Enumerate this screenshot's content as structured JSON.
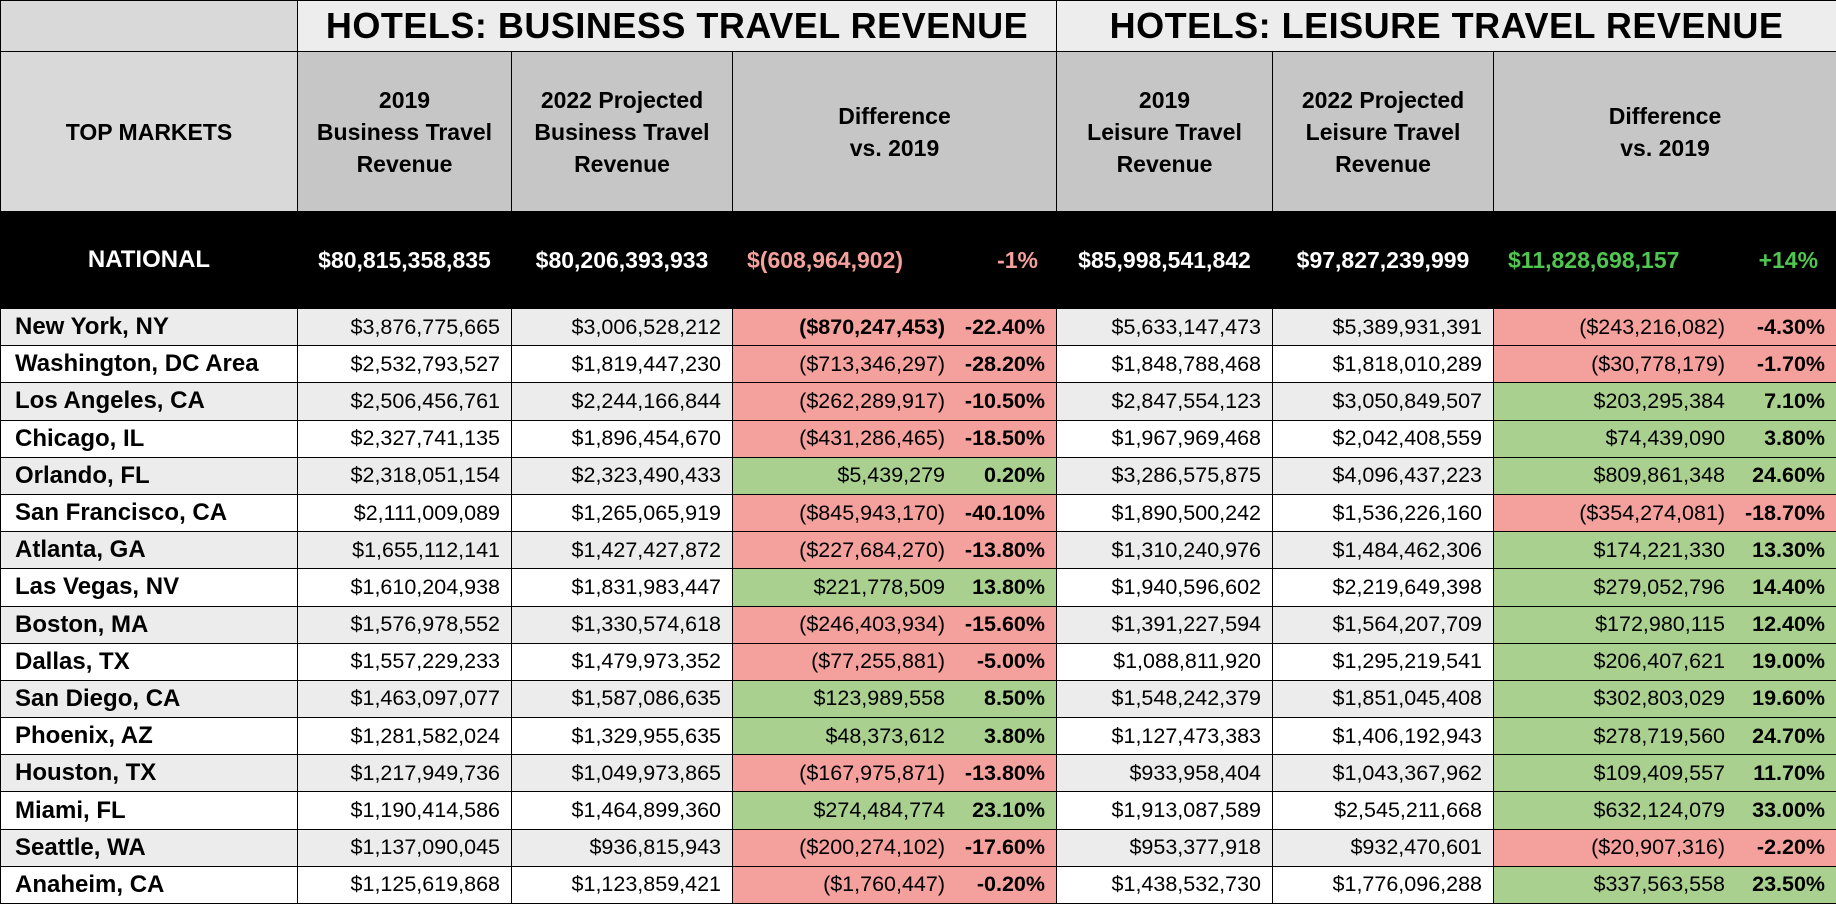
{
  "banner": {
    "business_title": "HOTELS: BUSINESS TRAVEL REVENUE",
    "leisure_title": "HOTELS: LEISURE TRAVEL REVENUE"
  },
  "headers": {
    "market": "TOP MARKETS",
    "biz_2019": [
      "2019",
      "Business Travel",
      "Revenue"
    ],
    "biz_2022": [
      "2022 Projected",
      "Business Travel",
      "Revenue"
    ],
    "biz_diff": [
      "Difference",
      "vs. 2019"
    ],
    "lei_2019": [
      "2019",
      "Leisure Travel",
      "Revenue"
    ],
    "lei_2022": [
      "2022 Projected",
      "Leisure Travel",
      "Revenue"
    ],
    "lei_diff": [
      "Difference",
      "vs. 2019"
    ]
  },
  "national": {
    "market": "NATIONAL",
    "biz_2019": "$80,815,358,835",
    "biz_2022": "$80,206,393,933",
    "biz_diff": "$(608,964,902)",
    "biz_pct": "-1%",
    "lei_2019": "$85,998,541,842",
    "lei_2022": "$97,827,239,999",
    "lei_diff": "$11,828,698,157",
    "lei_pct": "+14%"
  },
  "colors": {
    "negative": "#f4a09c",
    "positive": "#a9d08e",
    "national_positive_text": "#4fc64f"
  },
  "rows": [
    {
      "market": "New York, NY",
      "biz_2019": "$3,876,775,665",
      "biz_2022": "$3,006,528,212",
      "biz_diff": "($870,247,453)",
      "biz_pct": "-22.40%",
      "lei_2019": "$5,633,147,473",
      "lei_2022": "$5,389,931,391",
      "lei_diff": "($243,216,082)",
      "lei_pct": "-4.30%"
    },
    {
      "market": "Washington, DC Area",
      "biz_2019": "$2,532,793,527",
      "biz_2022": "$1,819,447,230",
      "biz_diff": "($713,346,297)",
      "biz_pct": "-28.20%",
      "lei_2019": "$1,848,788,468",
      "lei_2022": "$1,818,010,289",
      "lei_diff": "($30,778,179)",
      "lei_pct": "-1.70%"
    },
    {
      "market": "Los Angeles, CA",
      "biz_2019": "$2,506,456,761",
      "biz_2022": "$2,244,166,844",
      "biz_diff": "($262,289,917)",
      "biz_pct": "-10.50%",
      "lei_2019": "$2,847,554,123",
      "lei_2022": "$3,050,849,507",
      "lei_diff": "$203,295,384",
      "lei_pct": "7.10%"
    },
    {
      "market": "Chicago, IL",
      "biz_2019": "$2,327,741,135",
      "biz_2022": "$1,896,454,670",
      "biz_diff": "($431,286,465)",
      "biz_pct": "-18.50%",
      "lei_2019": "$1,967,969,468",
      "lei_2022": "$2,042,408,559",
      "lei_diff": "$74,439,090",
      "lei_pct": "3.80%"
    },
    {
      "market": "Orlando, FL",
      "biz_2019": "$2,318,051,154",
      "biz_2022": "$2,323,490,433",
      "biz_diff": "$5,439,279",
      "biz_pct": "0.20%",
      "lei_2019": "$3,286,575,875",
      "lei_2022": "$4,096,437,223",
      "lei_diff": "$809,861,348",
      "lei_pct": "24.60%"
    },
    {
      "market": "San Francisco, CA",
      "biz_2019": "$2,111,009,089",
      "biz_2022": "$1,265,065,919",
      "biz_diff": "($845,943,170)",
      "biz_pct": "-40.10%",
      "lei_2019": "$1,890,500,242",
      "lei_2022": "$1,536,226,160",
      "lei_diff": "($354,274,081)",
      "lei_pct": "-18.70%"
    },
    {
      "market": "Atlanta, GA",
      "biz_2019": "$1,655,112,141",
      "biz_2022": "$1,427,427,872",
      "biz_diff": "($227,684,270)",
      "biz_pct": "-13.80%",
      "lei_2019": "$1,310,240,976",
      "lei_2022": "$1,484,462,306",
      "lei_diff": "$174,221,330",
      "lei_pct": "13.30%"
    },
    {
      "market": "Las Vegas, NV",
      "biz_2019": "$1,610,204,938",
      "biz_2022": "$1,831,983,447",
      "biz_diff": "$221,778,509",
      "biz_pct": "13.80%",
      "lei_2019": "$1,940,596,602",
      "lei_2022": "$2,219,649,398",
      "lei_diff": "$279,052,796",
      "lei_pct": "14.40%"
    },
    {
      "market": "Boston, MA",
      "biz_2019": "$1,576,978,552",
      "biz_2022": "$1,330,574,618",
      "biz_diff": "($246,403,934)",
      "biz_pct": "-15.60%",
      "lei_2019": "$1,391,227,594",
      "lei_2022": "$1,564,207,709",
      "lei_diff": "$172,980,115",
      "lei_pct": "12.40%"
    },
    {
      "market": "Dallas, TX",
      "biz_2019": "$1,557,229,233",
      "biz_2022": "$1,479,973,352",
      "biz_diff": "($77,255,881)",
      "biz_pct": "-5.00%",
      "lei_2019": "$1,088,811,920",
      "lei_2022": "$1,295,219,541",
      "lei_diff": "$206,407,621",
      "lei_pct": "19.00%"
    },
    {
      "market": "San Diego, CA",
      "biz_2019": "$1,463,097,077",
      "biz_2022": "$1,587,086,635",
      "biz_diff": "$123,989,558",
      "biz_pct": "8.50%",
      "lei_2019": "$1,548,242,379",
      "lei_2022": "$1,851,045,408",
      "lei_diff": "$302,803,029",
      "lei_pct": "19.60%"
    },
    {
      "market": "Phoenix, AZ",
      "biz_2019": "$1,281,582,024",
      "biz_2022": "$1,329,955,635",
      "biz_diff": "$48,373,612",
      "biz_pct": "3.80%",
      "lei_2019": "$1,127,473,383",
      "lei_2022": "$1,406,192,943",
      "lei_diff": "$278,719,560",
      "lei_pct": "24.70%"
    },
    {
      "market": "Houston, TX",
      "biz_2019": "$1,217,949,736",
      "biz_2022": "$1,049,973,865",
      "biz_diff": "($167,975,871)",
      "biz_pct": "-13.80%",
      "lei_2019": "$933,958,404",
      "lei_2022": "$1,043,367,962",
      "lei_diff": "$109,409,557",
      "lei_pct": "11.70%"
    },
    {
      "market": "Miami, FL",
      "biz_2019": "$1,190,414,586",
      "biz_2022": "$1,464,899,360",
      "biz_diff": "$274,484,774",
      "biz_pct": "23.10%",
      "lei_2019": "$1,913,087,589",
      "lei_2022": "$2,545,211,668",
      "lei_diff": "$632,124,079",
      "lei_pct": "33.00%"
    },
    {
      "market": "Seattle, WA",
      "biz_2019": "$1,137,090,045",
      "biz_2022": "$936,815,943",
      "biz_diff": "($200,274,102)",
      "biz_pct": "-17.60%",
      "lei_2019": "$953,377,918",
      "lei_2022": "$932,470,601",
      "lei_diff": "($20,907,316)",
      "lei_pct": "-2.20%"
    },
    {
      "market": "Anaheim, CA",
      "biz_2019": "$1,125,619,868",
      "biz_2022": "$1,123,859,421",
      "biz_diff": "($1,760,447)",
      "biz_pct": "-0.20%",
      "lei_2019": "$1,438,532,730",
      "lei_2022": "$1,776,096,288",
      "lei_diff": "$337,563,558",
      "lei_pct": "23.50%"
    }
  ]
}
